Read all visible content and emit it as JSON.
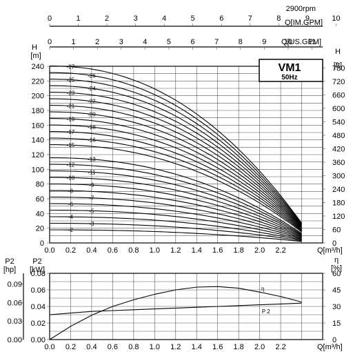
{
  "chart_data": [
    {
      "type": "line",
      "title": "VM1",
      "subtitle": "50Hz",
      "speed_label": "2900rpm",
      "x": {
        "label": "Q[m³/h]",
        "range": [
          0,
          2.6
        ],
        "ticks": [
          "0.0",
          "0.2",
          "0.4",
          "0.6",
          "0.8",
          "1.0",
          "1.2",
          "1.4",
          "1.6",
          "1.8",
          "2.0",
          "2.2"
        ]
      },
      "top_axis_imp": {
        "label": "Q[IM.GPM]",
        "ticks": [
          "0",
          "1",
          "2",
          "3",
          "4",
          "5",
          "6",
          "7",
          "8",
          "9",
          "10"
        ]
      },
      "top_axis_us": {
        "label": "Q[US.GPM]",
        "ticks": [
          "0",
          "1",
          "2",
          "3",
          "4",
          "5",
          "6",
          "7",
          "8",
          "9",
          "10",
          "11"
        ]
      },
      "y_left": {
        "label": "H",
        "unit": "[m]",
        "range": [
          0,
          240
        ],
        "ticks": [
          "0",
          "20",
          "40",
          "60",
          "80",
          "100",
          "120",
          "140",
          "160",
          "180",
          "200",
          "220",
          "240"
        ]
      },
      "y_right": {
        "label": "H",
        "unit": "[ft]",
        "ticks": [
          "0",
          "60",
          "120",
          "180",
          "240",
          "300",
          "360",
          "420",
          "480",
          "540",
          "600",
          "660",
          "720",
          "780"
        ]
      },
      "grid": true,
      "stages": [
        2,
        3,
        4,
        5,
        6,
        7,
        8,
        9,
        10,
        11,
        12,
        13,
        15,
        16,
        17,
        18,
        19,
        20,
        21,
        22,
        23,
        24,
        25,
        26,
        27
      ],
      "stage_labels": [
        "-2",
        "-3",
        "-4",
        "-5",
        "-6",
        "-7",
        "-8",
        "-9",
        "-10",
        "-11",
        "-12",
        "-13",
        "-15",
        "-16",
        "-17",
        "-18",
        "-19",
        "-20",
        "-21",
        "-22",
        "-23",
        "-24",
        "-25",
        "-26",
        "-27"
      ],
      "shutoff_head_per_stage_m": 8.9,
      "head_per_stage_at_max_flow_m": 1.0,
      "q_max": 2.4,
      "curve_shape_exponent": 2.2
    },
    {
      "type": "line",
      "x": {
        "label": "Q[m³/h]",
        "range": [
          0,
          2.6
        ],
        "ticks": [
          "0.0",
          "0.2",
          "0.4",
          "0.6",
          "0.8",
          "1.0",
          "1.2",
          "1.4",
          "1.6",
          "1.8",
          "2.0",
          "2.2"
        ]
      },
      "y_hp": {
        "label": "P2",
        "unit": "[hp]",
        "ticks": [
          "0.00",
          "0.03",
          "0.06",
          "0.09"
        ]
      },
      "y_kw": {
        "label": "P2",
        "unit": "[kW]",
        "range": [
          0,
          0.08
        ],
        "ticks": [
          "0.00",
          "0.02",
          "0.04",
          "0.06",
          "0.08"
        ]
      },
      "y_eff": {
        "label": "η",
        "unit": "[%]",
        "range": [
          0,
          60
        ],
        "ticks": [
          "0",
          "15",
          "30",
          "45",
          "60"
        ]
      },
      "grid": true,
      "series": [
        {
          "name": "η",
          "x": [
            0,
            0.2,
            0.4,
            0.6,
            0.8,
            1.0,
            1.2,
            1.4,
            1.6,
            1.8,
            2.0,
            2.2,
            2.4
          ],
          "y": [
            0,
            12,
            22,
            30,
            36,
            41,
            45,
            47.5,
            48,
            46.5,
            43,
            39,
            34
          ]
        },
        {
          "name": "P 2",
          "x": [
            0,
            0.2,
            0.4,
            0.6,
            0.8,
            1.0,
            1.2,
            1.4,
            1.6,
            1.8,
            2.0,
            2.2,
            2.4
          ],
          "y": [
            0.03,
            0.032,
            0.034,
            0.035,
            0.036,
            0.037,
            0.038,
            0.039,
            0.04,
            0.041,
            0.042,
            0.043,
            0.044
          ]
        }
      ]
    }
  ]
}
